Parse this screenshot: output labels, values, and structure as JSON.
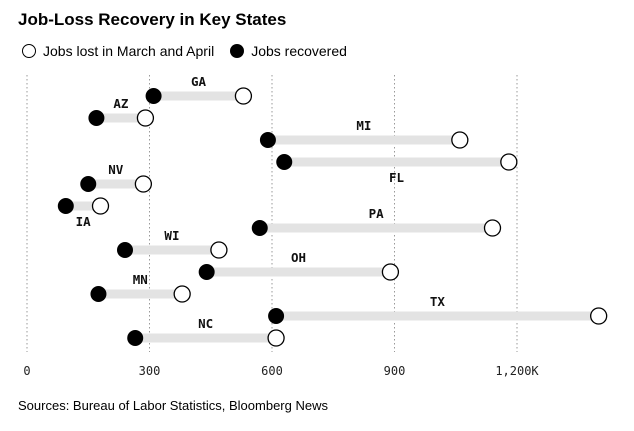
{
  "title": "Job-Loss Recovery in Key States",
  "legend": {
    "lost": "Jobs lost in March and April",
    "recovered": "Jobs recovered"
  },
  "source": "Sources: Bureau of Labor Statistics, Bloomberg News",
  "chart_data": {
    "type": "dumbbell",
    "title": "Job-Loss Recovery in Key States",
    "xlim": [
      0,
      1420
    ],
    "x_ticks": [
      0,
      300,
      600,
      900,
      1200
    ],
    "x_tick_labels": [
      "0",
      "300",
      "600",
      "900",
      "1,200K"
    ],
    "grid": "vertical dotted",
    "legend_placement": "top-left",
    "series": [
      {
        "name": "Jobs lost in March and April",
        "style": "open circle"
      },
      {
        "name": "Jobs recovered",
        "style": "filled circle"
      }
    ],
    "states": [
      {
        "state": "GA",
        "recovered": 310,
        "lost": 530,
        "label_side": "above"
      },
      {
        "state": "AZ",
        "recovered": 170,
        "lost": 290,
        "label_side": "above"
      },
      {
        "state": "MI",
        "recovered": 590,
        "lost": 1060,
        "label_side": "above"
      },
      {
        "state": "FL",
        "recovered": 630,
        "lost": 1180,
        "label_side": "below"
      },
      {
        "state": "NV",
        "recovered": 150,
        "lost": 285,
        "label_side": "above"
      },
      {
        "state": "IA",
        "recovered": 95,
        "lost": 180,
        "label_side": "below"
      },
      {
        "state": "PA",
        "recovered": 570,
        "lost": 1140,
        "label_side": "above"
      },
      {
        "state": "WI",
        "recovered": 240,
        "lost": 470,
        "label_side": "above"
      },
      {
        "state": "OH",
        "recovered": 440,
        "lost": 890,
        "label_side": "above"
      },
      {
        "state": "MN",
        "recovered": 175,
        "lost": 380,
        "label_side": "above"
      },
      {
        "state": "TX",
        "recovered": 610,
        "lost": 1400,
        "label_side": "above"
      },
      {
        "state": "NC",
        "recovered": 265,
        "lost": 610,
        "label_side": "above"
      }
    ]
  }
}
